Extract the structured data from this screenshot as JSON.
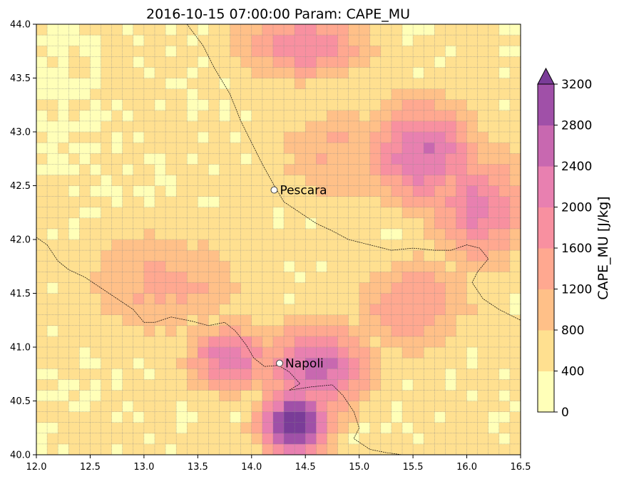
{
  "chart_data": {
    "type": "heatmap",
    "title": "2016-10-15 07:00:00 Param: CAPE_MU",
    "xlim": [
      12.0,
      16.5
    ],
    "ylim": [
      40.0,
      44.0
    ],
    "x_ticks": [
      "12.0",
      "12.5",
      "13.0",
      "13.5",
      "14.0",
      "14.5",
      "15.0",
      "15.5",
      "16.0",
      "16.5"
    ],
    "y_ticks": [
      "40.0",
      "40.5",
      "41.0",
      "41.5",
      "42.0",
      "42.5",
      "43.0",
      "43.5",
      "44.0"
    ],
    "grid_step_deg": 0.1,
    "grid": true,
    "colorbar": {
      "label": "CAPE_MU  [J/kg]",
      "levels": [
        0,
        400,
        800,
        1200,
        1600,
        2000,
        2400,
        2800,
        3200
      ],
      "tick_labels": [
        "0",
        "400",
        "800",
        "1200",
        "1600",
        "2000",
        "2400",
        "2800",
        "3200"
      ],
      "colors": [
        "#ffffb8",
        "#ffe090",
        "#ffc088",
        "#ffa890",
        "#f890a0",
        "#e880b0",
        "#c868b0",
        "#a050a8"
      ],
      "extend": "max",
      "extend_color": "#7a3c98",
      "placement": "right"
    },
    "hotspots": [
      {
        "lon": 14.4,
        "lat": 40.3,
        "value": 3400,
        "rx": 0.35,
        "ry": 0.35
      },
      {
        "lon": 14.6,
        "lat": 40.8,
        "value": 2500,
        "rx": 0.55,
        "ry": 0.45
      },
      {
        "lon": 13.8,
        "lat": 40.9,
        "value": 2100,
        "rx": 0.45,
        "ry": 0.35
      },
      {
        "lon": 15.6,
        "lat": 42.8,
        "value": 2300,
        "rx": 0.55,
        "ry": 0.55
      },
      {
        "lon": 16.1,
        "lat": 42.3,
        "value": 2000,
        "rx": 0.5,
        "ry": 0.6
      },
      {
        "lon": 14.5,
        "lat": 43.8,
        "value": 1800,
        "rx": 0.7,
        "ry": 0.35
      },
      {
        "lon": 13.2,
        "lat": 41.6,
        "value": 1200,
        "rx": 0.9,
        "ry": 0.6
      },
      {
        "lon": 15.5,
        "lat": 41.4,
        "value": 1500,
        "rx": 0.6,
        "ry": 0.5
      },
      {
        "lon": 14.8,
        "lat": 42.8,
        "value": 1100,
        "rx": 0.7,
        "ry": 0.6
      }
    ],
    "cities": [
      {
        "name": "Pescara",
        "lon": 14.21,
        "lat": 42.46
      },
      {
        "name": "Napoli",
        "lon": 14.26,
        "lat": 40.85
      }
    ],
    "coastline": [
      [
        [
          12.0,
          42.02
        ],
        [
          12.1,
          41.95
        ],
        [
          12.2,
          41.8
        ],
        [
          12.3,
          41.72
        ],
        [
          12.45,
          41.65
        ],
        [
          12.6,
          41.55
        ],
        [
          12.75,
          41.45
        ],
        [
          12.9,
          41.35
        ],
        [
          13.0,
          41.23
        ],
        [
          13.1,
          41.23
        ],
        [
          13.25,
          41.28
        ],
        [
          13.45,
          41.24
        ],
        [
          13.6,
          41.2
        ],
        [
          13.75,
          41.23
        ],
        [
          13.85,
          41.15
        ],
        [
          13.95,
          41.02
        ],
        [
          14.02,
          40.9
        ],
        [
          14.12,
          40.82
        ],
        [
          14.25,
          40.83
        ],
        [
          14.35,
          40.77
        ],
        [
          14.45,
          40.66
        ],
        [
          14.35,
          40.6
        ],
        [
          14.55,
          40.63
        ],
        [
          14.75,
          40.65
        ],
        [
          14.85,
          40.55
        ],
        [
          14.95,
          40.4
        ],
        [
          15.0,
          40.25
        ],
        [
          14.95,
          40.15
        ],
        [
          15.1,
          40.05
        ],
        [
          15.25,
          40.02
        ],
        [
          15.4,
          40.0
        ]
      ],
      [
        [
          13.4,
          44.0
        ],
        [
          13.55,
          43.8
        ],
        [
          13.65,
          43.6
        ],
        [
          13.8,
          43.35
        ],
        [
          13.9,
          43.1
        ],
        [
          14.0,
          42.9
        ],
        [
          14.1,
          42.7
        ],
        [
          14.2,
          42.52
        ],
        [
          14.3,
          42.35
        ],
        [
          14.45,
          42.25
        ],
        [
          14.6,
          42.15
        ],
        [
          14.75,
          42.08
        ],
        [
          14.9,
          42.0
        ],
        [
          15.1,
          41.95
        ],
        [
          15.3,
          41.9
        ],
        [
          15.5,
          41.92
        ],
        [
          15.7,
          41.9
        ],
        [
          15.85,
          41.9
        ],
        [
          16.0,
          41.95
        ],
        [
          16.12,
          41.92
        ],
        [
          16.2,
          41.82
        ],
        [
          16.1,
          41.7
        ],
        [
          16.05,
          41.6
        ],
        [
          16.15,
          41.45
        ],
        [
          16.3,
          41.35
        ],
        [
          16.5,
          41.25
        ]
      ]
    ]
  }
}
